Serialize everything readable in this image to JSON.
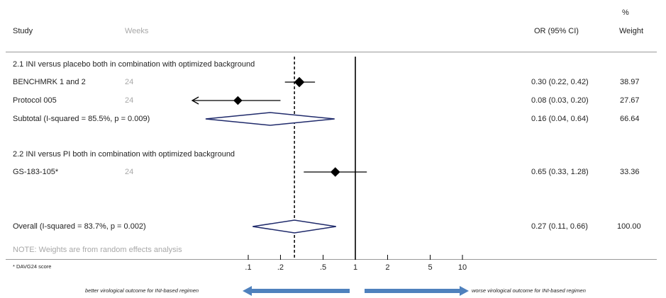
{
  "header": {
    "study": "Study",
    "weeks": "Weeks",
    "or": "OR (95% CI)",
    "pct": "%",
    "weight": "Weight"
  },
  "groups": [
    {
      "label": "2.1 INI versus placebo both in combination with optimized background"
    },
    {
      "label": "2.2 INI versus PI both in combination with optimized background"
    }
  ],
  "rows": [
    {
      "study": "BENCHMRK 1 and 2",
      "weeks": "24",
      "or_text": "0.30 (0.22, 0.42)",
      "weight": "38.97"
    },
    {
      "study": "Protocol 005",
      "weeks": "24",
      "or_text": "0.08 (0.03, 0.20)",
      "weight": "27.67"
    },
    {
      "study": "Subtotal  (I-squared = 85.5%, p = 0.009)",
      "weeks": "",
      "or_text": "0.16 (0.04, 0.64)",
      "weight": "66.64"
    },
    {
      "study": "GS-183-105*",
      "weeks": "24",
      "or_text": "0.65 (0.33, 1.28)",
      "weight": "33.36"
    },
    {
      "study": "Overall  (I-squared = 83.7%, p = 0.002)",
      "weeks": "",
      "or_text": "0.27 (0.11, 0.66)",
      "weight": "100.00"
    }
  ],
  "note": "NOTE: Weights are from random effects analysis",
  "footnote": "* DAVG24 score",
  "arrows": {
    "left_label": "better virological outcome for INI-based regimen",
    "right_label": "worse virological outcome for INI-based regimen",
    "color": "#4f81bd"
  },
  "chart_data": {
    "type": "forest",
    "x_scale": "log",
    "x_ticks": [
      0.1,
      0.2,
      0.5,
      1,
      2,
      5,
      10
    ],
    "x_tick_labels": [
      ".1",
      ".2",
      ".5",
      "1",
      "2",
      "5",
      "10"
    ],
    "xlim": [
      0.1,
      10
    ],
    "reference_line": 1,
    "pooled_line": 0.27,
    "studies": [
      {
        "name": "BENCHMRK 1 and 2",
        "or": 0.3,
        "lo": 0.22,
        "hi": 0.42,
        "weight": 38.97
      },
      {
        "name": "Protocol 005",
        "or": 0.08,
        "lo": 0.03,
        "hi": 0.2,
        "weight": 27.67,
        "lo_clipped": true
      },
      {
        "name": "GS-183-105*",
        "or": 0.65,
        "lo": 0.33,
        "hi": 1.28,
        "weight": 33.36
      }
    ],
    "summaries": [
      {
        "name": "Subtotal",
        "or": 0.16,
        "lo": 0.04,
        "hi": 0.64,
        "weight": 66.64
      },
      {
        "name": "Overall",
        "or": 0.27,
        "lo": 0.11,
        "hi": 0.66,
        "weight": 100.0
      }
    ],
    "colors": {
      "diamond": "#1f2a6b",
      "ink": "#000000"
    }
  }
}
